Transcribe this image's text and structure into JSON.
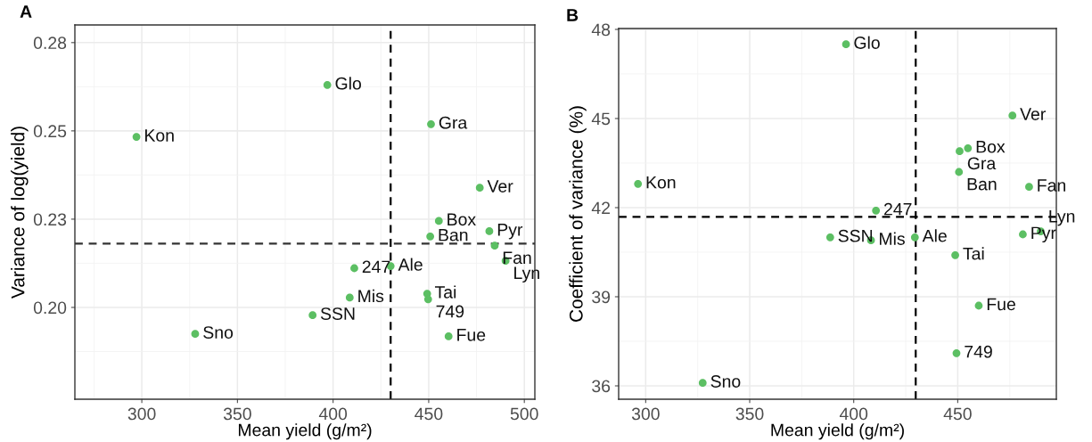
{
  "chart_data": [
    {
      "type": "scatter",
      "title": "A",
      "xlabel": "Mean yield (g/m²)",
      "ylabel": "Variance of log(yield)",
      "xlim": [
        265,
        505.5
      ],
      "ylim": [
        0.174,
        0.28
      ],
      "xticks": [
        300,
        350,
        400,
        450,
        500
      ],
      "yticks": [
        "0.20",
        {
          "value": 0.225,
          "label": "0.23"
        },
        0.25,
        {
          "value": 0.275,
          "label": "0.28"
        }
      ],
      "grid": true,
      "marker": "circle",
      "series": [
        {
          "color": "#5cbf63",
          "x": [
            297.2,
            397.0,
            451.2,
            476.7,
            455.3,
            481.7,
            450.8,
            484.5,
            490.2,
            411.1,
            430.1,
            449.2,
            449.7,
            408.7,
            389.3,
            327.9,
            460.4
          ],
          "values": [
            0.2483,
            0.263,
            0.2519,
            0.2339,
            0.2245,
            0.2216,
            0.2201,
            0.2175,
            0.2132,
            0.2111,
            0.2117,
            0.2039,
            0.2023,
            0.2028,
            0.1978,
            0.1925,
            0.1918
          ]
        }
      ],
      "annotations": [
        {
          "text": "Kon",
          "x": 297.2,
          "y": 0.2483
        },
        {
          "text": "Glo",
          "x": 397.0,
          "y": 0.263
        },
        {
          "text": "Gra",
          "x": 451.2,
          "y": 0.2519
        },
        {
          "text": "Ver",
          "x": 476.7,
          "y": 0.2339
        },
        {
          "text": "Box",
          "x": 455.3,
          "y": 0.2245
        },
        {
          "text": "Pyr",
          "x": 481.7,
          "y": 0.2216
        },
        {
          "text": "Ban",
          "x": 450.8,
          "y": 0.2201
        },
        {
          "text": "Fan",
          "x": 484.5,
          "y": 0.2175
        },
        {
          "text": "Lyn",
          "x": 490.2,
          "y": 0.2132
        },
        {
          "text": "247",
          "x": 411.1,
          "y": 0.2111
        },
        {
          "text": "Ale",
          "x": 430.1,
          "y": 0.2117
        },
        {
          "text": "Tai",
          "x": 449.2,
          "y": 0.2039
        },
        {
          "text": "749",
          "x": 449.7,
          "y": 0.2023
        },
        {
          "text": "Mis",
          "x": 408.7,
          "y": 0.2028
        },
        {
          "text": "SSN",
          "x": 389.3,
          "y": 0.1978
        },
        {
          "text": "Sno",
          "x": 327.9,
          "y": 0.1925
        },
        {
          "text": "Fue",
          "x": 460.4,
          "y": 0.1918
        }
      ],
      "ref_lines": [
        {
          "axis": "y",
          "value": 0.2181,
          "line_style": "dashed",
          "color": "#333333"
        },
        {
          "axis": "x",
          "value": 430.1,
          "line_style": "dashed",
          "color": "#000000"
        }
      ]
    },
    {
      "type": "scatter",
      "title": "B",
      "xlabel": "Mean yield (g/m²)",
      "ylabel": "Coefficient of variance (%)",
      "xlim": [
        287.0,
        497.4
      ],
      "ylim": [
        35.55,
        48.03
      ],
      "xticks": [
        300,
        350,
        400,
        450
      ],
      "yticks": [
        36,
        39,
        42,
        45,
        48
      ],
      "grid": true,
      "marker": "circle",
      "series": [
        {
          "color": "#5cbf63",
          "x": [
            396.3,
            476.3,
            454.9,
            450.9,
            450.6,
            296.3,
            484.3,
            410.7,
            388.7,
            408.3,
            429.4,
            448.8,
            481.3,
            489.9,
            460.1,
            449.4,
            327.4
          ],
          "values": [
            47.5,
            45.1,
            44.0,
            43.9,
            43.2,
            42.8,
            42.7,
            41.9,
            41.0,
            40.9,
            41.0,
            40.4,
            41.1,
            41.2,
            38.7,
            37.1,
            36.1
          ]
        }
      ],
      "annotations": [
        {
          "text": "Glo",
          "x": 396.3,
          "y": 47.5
        },
        {
          "text": "Ver",
          "x": 476.3,
          "y": 45.1
        },
        {
          "text": "Box",
          "x": 454.9,
          "y": 44.0
        },
        {
          "text": "Gra",
          "x": 450.9,
          "y": 43.9
        },
        {
          "text": "Ban",
          "x": 450.6,
          "y": 43.2
        },
        {
          "text": "Kon",
          "x": 296.3,
          "y": 42.8
        },
        {
          "text": "Fan",
          "x": 484.3,
          "y": 42.7
        },
        {
          "text": "247",
          "x": 410.7,
          "y": 41.9
        },
        {
          "text": "SSN",
          "x": 388.7,
          "y": 41.0
        },
        {
          "text": "Mis",
          "x": 408.3,
          "y": 40.9
        },
        {
          "text": "Ale",
          "x": 429.4,
          "y": 41.0
        },
        {
          "text": "Tai",
          "x": 448.8,
          "y": 40.4
        },
        {
          "text": "Pyr",
          "x": 481.3,
          "y": 41.1
        },
        {
          "text": "Lyn",
          "x": 489.9,
          "y": 41.2
        },
        {
          "text": "Fue",
          "x": 460.1,
          "y": 38.7
        },
        {
          "text": "749",
          "x": 449.4,
          "y": 37.1
        },
        {
          "text": "Sno",
          "x": 327.4,
          "y": 36.1
        }
      ],
      "ref_lines": [
        {
          "axis": "y",
          "value": 41.69,
          "line_style": "dashed",
          "color": "#000000"
        },
        {
          "axis": "x",
          "value": 429.8,
          "line_style": "dashed",
          "color": "#000000"
        }
      ]
    }
  ]
}
